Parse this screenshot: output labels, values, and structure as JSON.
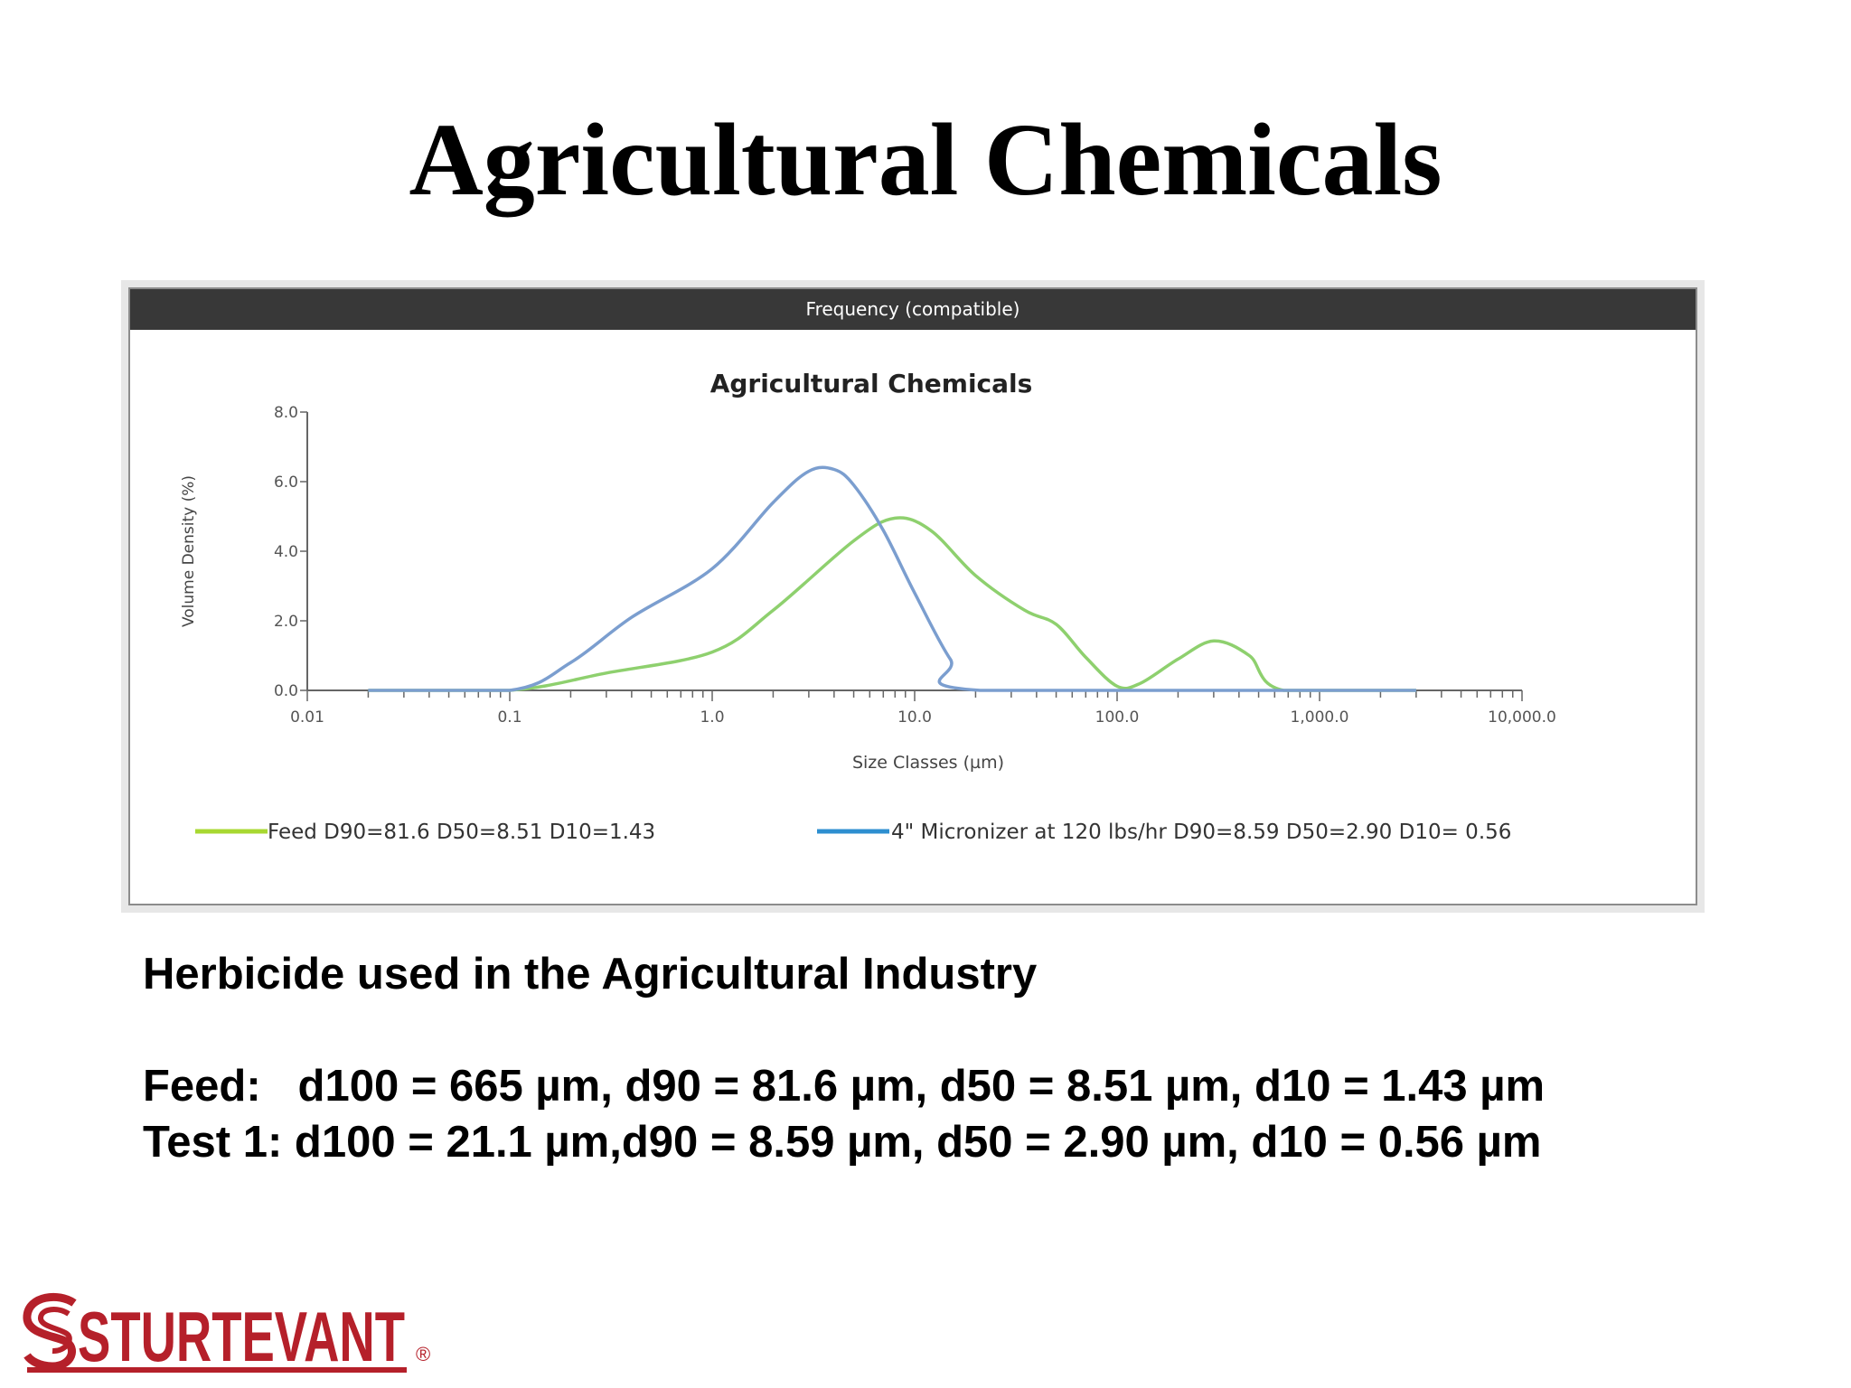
{
  "slide": {
    "title": "Agricultural Chemicals",
    "subtitle": "Herbicide used in the Agricultural Industry",
    "feed_line": "Feed:   d100 = 665 µm, d90 = 81.6 µm, d50 = 8.51 µm, d10 = 1.43 µm",
    "test_line": "Test 1: d100 = 21.1 µm,d90 = 8.59 µm, d50 = 2.90 µm, d10 = 0.56 µm",
    "logo_text": "STURTEVANT",
    "logo_color": "#b5202a"
  },
  "chart_data": {
    "type": "line",
    "header": "Frequency (compatible)",
    "title": "Agricultural Chemicals",
    "xlabel": "Size Classes (µm)",
    "ylabel": "Volume Density (%)",
    "x_scale": "log",
    "xlim": [
      0.01,
      10000
    ],
    "ylim": [
      0,
      8
    ],
    "x_ticks": [
      "0.01",
      "0.1",
      "1.0",
      "10.0",
      "100.0",
      "1,000.0",
      "10,000.0"
    ],
    "y_ticks": [
      "0.0",
      "2.0",
      "4.0",
      "6.0",
      "8.0"
    ],
    "grid": false,
    "legend": "bottom",
    "series": [
      {
        "name": "Feed D90=81.6  D50=8.51  D10=1.43",
        "color": "#8ed06e",
        "legend_color": "#a8d832",
        "x": [
          0.02,
          0.1,
          0.3,
          1.0,
          2.0,
          5.0,
          8.0,
          12.0,
          20.0,
          35.0,
          50.0,
          70.0,
          100.0,
          130.0,
          200.0,
          300.0,
          450.0,
          665.0,
          3000.0
        ],
        "y": [
          0.0,
          0.0,
          0.5,
          1.1,
          2.3,
          4.3,
          4.95,
          4.6,
          3.3,
          2.3,
          1.9,
          0.95,
          0.12,
          0.2,
          0.9,
          1.42,
          1.0,
          0.0,
          0.0
        ]
      },
      {
        "name": "4\" Micronizer at 120 lbs/hr  D90=8.59  D50=2.90  D10= 0.56",
        "color": "#7b9ecf",
        "legend_color": "#2e8fd0",
        "x": [
          0.02,
          0.1,
          0.2,
          0.4,
          1.0,
          2.0,
          3.0,
          4.0,
          5.0,
          7.0,
          10.0,
          15.0,
          21.1,
          3000.0
        ],
        "y": [
          0.0,
          0.0,
          0.8,
          2.1,
          3.5,
          5.4,
          6.3,
          6.35,
          5.9,
          4.6,
          2.8,
          0.9,
          0.0,
          0.0
        ]
      }
    ]
  }
}
